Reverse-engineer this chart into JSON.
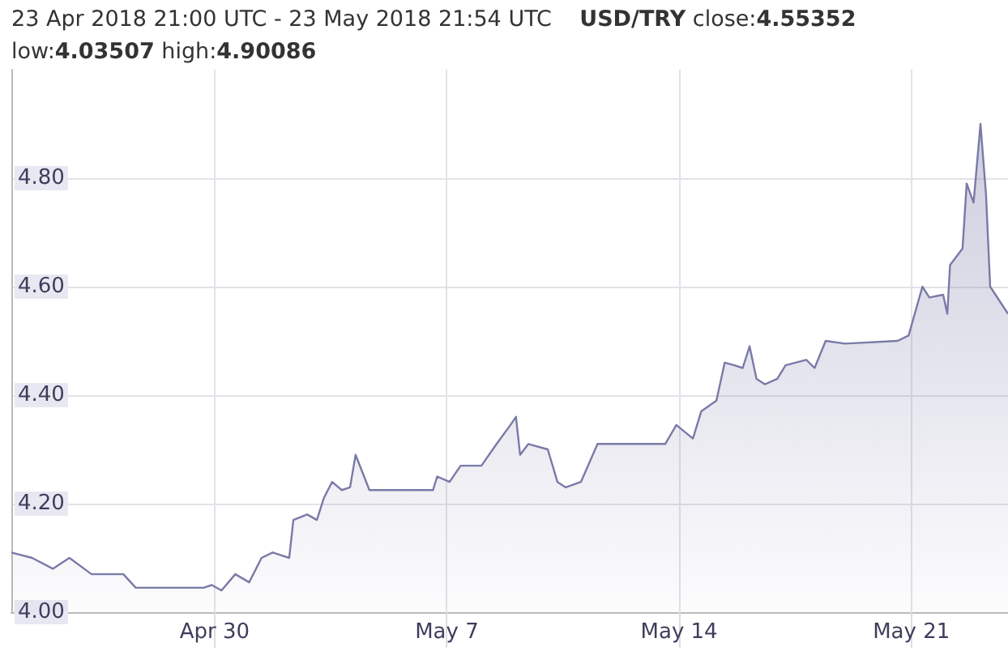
{
  "chart_data": {
    "type": "area",
    "title": "23 Apr 2018 21:00 UTC - 23 May 2018 21:54 UTC",
    "subtitle": "USD/TRY",
    "annotations": [
      "close:4.55352",
      "low:4.03507",
      "high:4.90086"
    ],
    "x": [
      "2018-04-23T21:00",
      "2018-04-24T12:00",
      "2018-04-25T03:00",
      "2018-04-25T15:00",
      "2018-04-26T07:00",
      "2018-04-27T06:00",
      "2018-04-27T15:00",
      "2018-04-28T05:00",
      "2018-04-29T16:00",
      "2018-04-29T22:00",
      "2018-04-30T05:00",
      "2018-04-30T15:00",
      "2018-05-01T01:00",
      "2018-05-01T10:00",
      "2018-05-01T18:00",
      "2018-05-02T06:00",
      "2018-05-02T09:00",
      "2018-05-02T19:00",
      "2018-05-03T02:00",
      "2018-05-03T07:00",
      "2018-05-03T13:00",
      "2018-05-03T20:00",
      "2018-05-04T02:00",
      "2018-05-04T06:00",
      "2018-05-04T16:00",
      "2018-05-05T00:00",
      "2018-05-06T14:00",
      "2018-05-06T17:00",
      "2018-05-07T02:00",
      "2018-05-07T10:00",
      "2018-05-08T01:00",
      "2018-05-08T12:00",
      "2018-05-08T22:00",
      "2018-05-09T02:00",
      "2018-05-09T05:00",
      "2018-05-09T11:00",
      "2018-05-10T01:00",
      "2018-05-10T08:00",
      "2018-05-10T14:00",
      "2018-05-11T01:00",
      "2018-05-11T13:00",
      "2018-05-11T21:00",
      "2018-05-13T14:00",
      "2018-05-13T22:00",
      "2018-05-14T10:00",
      "2018-05-14T16:00",
      "2018-05-15T03:00",
      "2018-05-15T09:00",
      "2018-05-15T16:00",
      "2018-05-15T22:00",
      "2018-05-16T03:00",
      "2018-05-16T08:00",
      "2018-05-16T14:00",
      "2018-05-16T23:00",
      "2018-05-17T05:00",
      "2018-05-17T20:00",
      "2018-05-18T02:00",
      "2018-05-18T10:00",
      "2018-05-19T00:00",
      "2018-05-20T14:00",
      "2018-05-20T22:00",
      "2018-05-21T08:00",
      "2018-05-21T13:00",
      "2018-05-21T23:00",
      "2018-05-22T02:00",
      "2018-05-22T04:00",
      "2018-05-22T13:00",
      "2018-05-22T16:00",
      "2018-05-22T21:00",
      "2018-05-23T02:00",
      "2018-05-23T06:00",
      "2018-05-23T09:00",
      "2018-05-23T21:54"
    ],
    "series": [
      {
        "color": "#7a7aa8",
        "values": [
          4.11,
          4.1,
          4.08,
          4.1,
          4.07,
          4.07,
          4.045,
          4.045,
          4.045,
          4.05,
          4.04,
          4.07,
          4.055,
          4.1,
          4.11,
          4.1,
          4.17,
          4.18,
          4.17,
          4.21,
          4.24,
          4.225,
          4.23,
          4.29,
          4.225,
          4.225,
          4.225,
          4.25,
          4.24,
          4.27,
          4.27,
          4.31,
          4.345,
          4.36,
          4.29,
          4.31,
          4.3,
          4.24,
          4.23,
          4.24,
          4.31,
          4.31,
          4.31,
          4.345,
          4.32,
          4.37,
          4.39,
          4.46,
          4.455,
          4.45,
          4.49,
          4.43,
          4.42,
          4.43,
          4.455,
          4.465,
          4.45,
          4.5,
          4.495,
          4.5,
          4.51,
          4.6,
          4.58,
          4.585,
          4.55,
          4.64,
          4.67,
          4.79,
          4.755,
          4.9,
          4.77,
          4.6,
          4.55
        ]
      }
    ],
    "xlim": [
      "2018-04-23T21:00",
      "2018-05-23T21:54"
    ],
    "xticks": [
      {
        "value": "2018-04-30",
        "label": "Apr 30"
      },
      {
        "value": "2018-05-07",
        "label": "May 7"
      },
      {
        "value": "2018-05-14",
        "label": "May 14"
      },
      {
        "value": "2018-05-21",
        "label": "May 21"
      }
    ],
    "ylim": [
      4.0,
      5.0
    ],
    "yticks": [
      {
        "value": 4.0,
        "label": "4.00"
      },
      {
        "value": 4.2,
        "label": "4.20"
      },
      {
        "value": 4.4,
        "label": "4.40"
      },
      {
        "value": 4.6,
        "label": "4.60"
      },
      {
        "value": 4.8,
        "label": "4.80"
      }
    ],
    "grid": true,
    "marker": "none",
    "line_style": "solid"
  }
}
